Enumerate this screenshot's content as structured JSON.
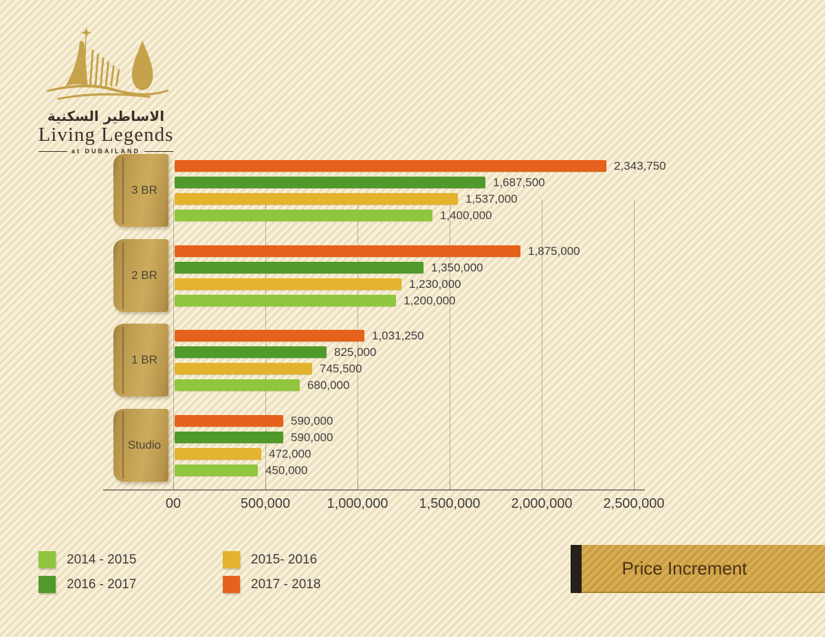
{
  "logo": {
    "arabic": "الاساطير السكنية",
    "wordmark": "Living Legends",
    "tagline": "at DUBAILAND"
  },
  "banner": {
    "label": "Price Increment",
    "gold_color": "#d0a64b",
    "accent_color": "#262119"
  },
  "legend": {
    "columns": [
      [
        {
          "label": "2014 - 2015",
          "color": "#8fc63e"
        },
        {
          "label": "2016 - 2017",
          "color": "#4f9a2b"
        }
      ],
      [
        {
          "label": "2015- 2016",
          "color": "#e3b32d"
        },
        {
          "label": "2017 - 2018",
          "color": "#e6611b"
        }
      ]
    ]
  },
  "chart_data": {
    "type": "bar",
    "orientation": "horizontal",
    "title": "Price Increment",
    "categories": [
      "3 BR",
      "2 BR",
      "1 BR",
      "Studio"
    ],
    "series_order_note": "rows listed top-to-bottom within each category group",
    "series": [
      {
        "name": "2017 - 2018",
        "color": "#e6611b",
        "values": [
          2343750,
          1875000,
          1031250,
          590000
        ],
        "value_labels": [
          "2,343,750",
          "1,875,000",
          "1,031,250",
          "590,000"
        ]
      },
      {
        "name": "2016 - 2017",
        "color": "#4f9a2b",
        "values": [
          1687500,
          1350000,
          825000,
          590000
        ],
        "value_labels": [
          "1,687,500",
          "1,350,000",
          "825,000",
          "590,000"
        ]
      },
      {
        "name": "2015- 2016",
        "color": "#e3b32d",
        "values": [
          1537000,
          1230000,
          745500,
          472000
        ],
        "value_labels": [
          "1,537,000",
          "1,230,000",
          "745,500",
          "472,000"
        ]
      },
      {
        "name": "2014 - 2015",
        "color": "#8fc63e",
        "values": [
          1400000,
          1200000,
          680000,
          450000
        ],
        "value_labels": [
          "1,400,000",
          "1,200,000",
          "680,000",
          "450,000"
        ]
      }
    ],
    "xlim": [
      0,
      2500000
    ],
    "x_ticks": [
      {
        "value": 0,
        "label": "00"
      },
      {
        "value": 500000,
        "label": "500,000"
      },
      {
        "value": 1000000,
        "label": "1,000,000"
      },
      {
        "value": 1500000,
        "label": "1,500,000"
      },
      {
        "value": 2000000,
        "label": "2,000,000"
      },
      {
        "value": 2500000,
        "label": "2,500,000"
      }
    ],
    "grid": "vertical",
    "legend_position": "bottom-left"
  }
}
